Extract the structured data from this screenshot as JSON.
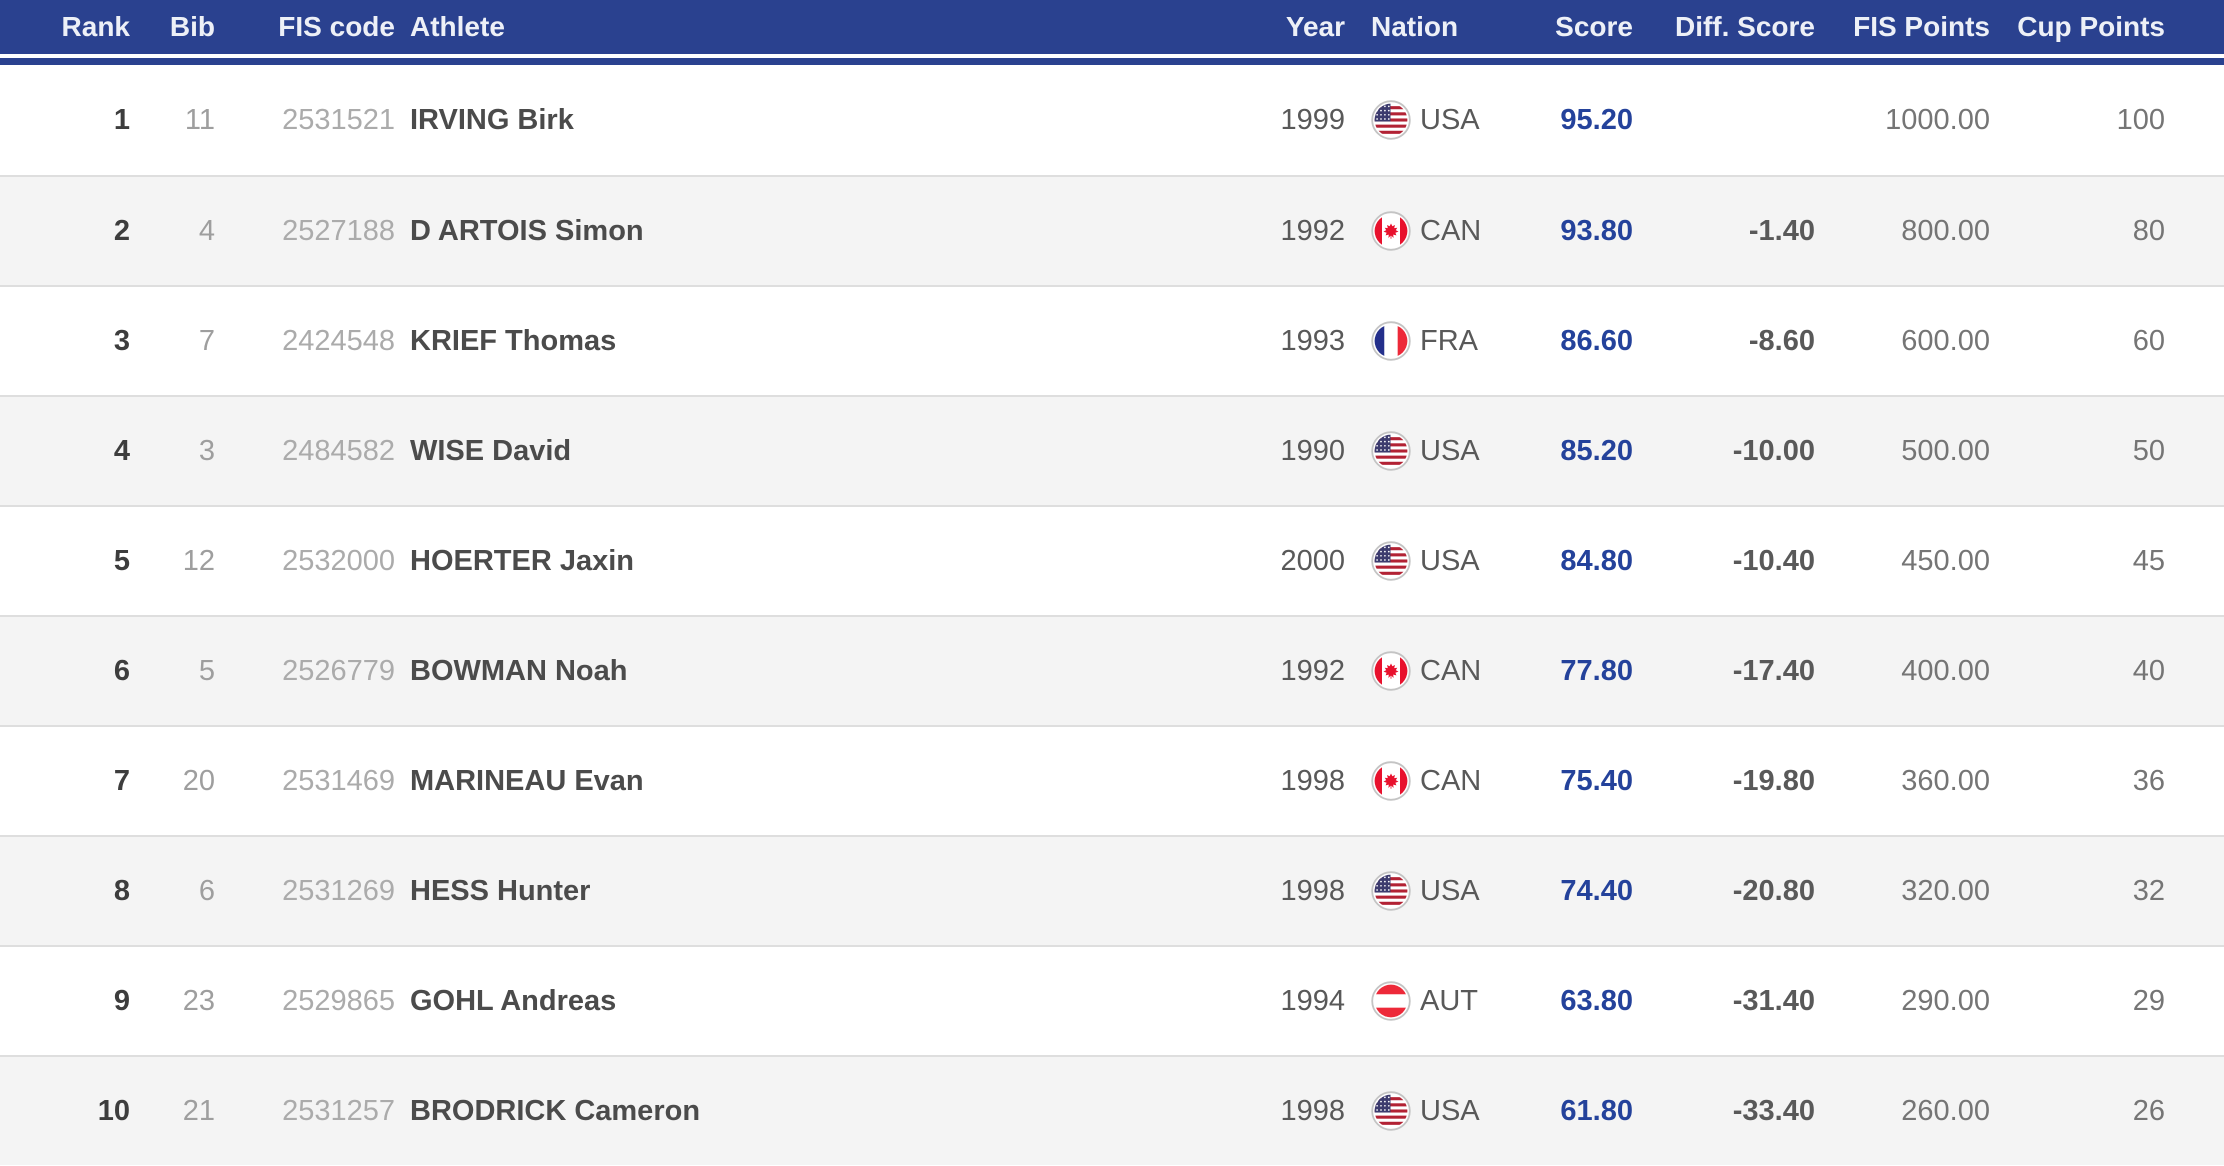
{
  "table": {
    "columns": [
      "Rank",
      "Bib",
      "FIS code",
      "Athlete",
      "Year",
      "Nation",
      "Score",
      "Diff. Score",
      "FIS Points",
      "Cup Points"
    ],
    "rows": [
      {
        "rank": "1",
        "bib": "11",
        "fis_code": "2531521",
        "athlete": "IRVING Birk",
        "year": "1999",
        "nation": "USA",
        "score": "95.20",
        "diff_score": "",
        "fis_points": "1000.00",
        "cup_points": "100"
      },
      {
        "rank": "2",
        "bib": "4",
        "fis_code": "2527188",
        "athlete": "D ARTOIS Simon",
        "year": "1992",
        "nation": "CAN",
        "score": "93.80",
        "diff_score": "-1.40",
        "fis_points": "800.00",
        "cup_points": "80"
      },
      {
        "rank": "3",
        "bib": "7",
        "fis_code": "2424548",
        "athlete": "KRIEF Thomas",
        "year": "1993",
        "nation": "FRA",
        "score": "86.60",
        "diff_score": "-8.60",
        "fis_points": "600.00",
        "cup_points": "60"
      },
      {
        "rank": "4",
        "bib": "3",
        "fis_code": "2484582",
        "athlete": "WISE David",
        "year": "1990",
        "nation": "USA",
        "score": "85.20",
        "diff_score": "-10.00",
        "fis_points": "500.00",
        "cup_points": "50"
      },
      {
        "rank": "5",
        "bib": "12",
        "fis_code": "2532000",
        "athlete": "HOERTER Jaxin",
        "year": "2000",
        "nation": "USA",
        "score": "84.80",
        "diff_score": "-10.40",
        "fis_points": "450.00",
        "cup_points": "45"
      },
      {
        "rank": "6",
        "bib": "5",
        "fis_code": "2526779",
        "athlete": "BOWMAN Noah",
        "year": "1992",
        "nation": "CAN",
        "score": "77.80",
        "diff_score": "-17.40",
        "fis_points": "400.00",
        "cup_points": "40"
      },
      {
        "rank": "7",
        "bib": "20",
        "fis_code": "2531469",
        "athlete": "MARINEAU Evan",
        "year": "1998",
        "nation": "CAN",
        "score": "75.40",
        "diff_score": "-19.80",
        "fis_points": "360.00",
        "cup_points": "36"
      },
      {
        "rank": "8",
        "bib": "6",
        "fis_code": "2531269",
        "athlete": "HESS Hunter",
        "year": "1998",
        "nation": "USA",
        "score": "74.40",
        "diff_score": "-20.80",
        "fis_points": "320.00",
        "cup_points": "32"
      },
      {
        "rank": "9",
        "bib": "23",
        "fis_code": "2529865",
        "athlete": "GOHL Andreas",
        "year": "1994",
        "nation": "AUT",
        "score": "63.80",
        "diff_score": "-31.40",
        "fis_points": "290.00",
        "cup_points": "29"
      },
      {
        "rank": "10",
        "bib": "21",
        "fis_code": "2531257",
        "athlete": "BRODRICK Cameron",
        "year": "1998",
        "nation": "USA",
        "score": "61.80",
        "diff_score": "-33.40",
        "fis_points": "260.00",
        "cup_points": "26"
      }
    ]
  },
  "colors": {
    "header_background": "#2a418f",
    "header_text": "#edf0f7",
    "score_text": "#24429b",
    "row_alt_background": "#f4f4f4",
    "row_divider": "#dedede",
    "flag_ring": "#c4c4c4"
  },
  "flags": {
    "USA": {
      "type": "usa",
      "red": "#b22234",
      "white": "#ffffff",
      "canton": "#3c3b6e"
    },
    "CAN": {
      "type": "canada",
      "red": "#e8112d",
      "white": "#ffffff"
    },
    "FRA": {
      "type": "vertical",
      "bands": [
        "#232f8b",
        "#ffffff",
        "#ed2939"
      ]
    },
    "AUT": {
      "type": "horizontal",
      "bands": [
        "#ed2939",
        "#ffffff",
        "#ed2939"
      ]
    }
  }
}
